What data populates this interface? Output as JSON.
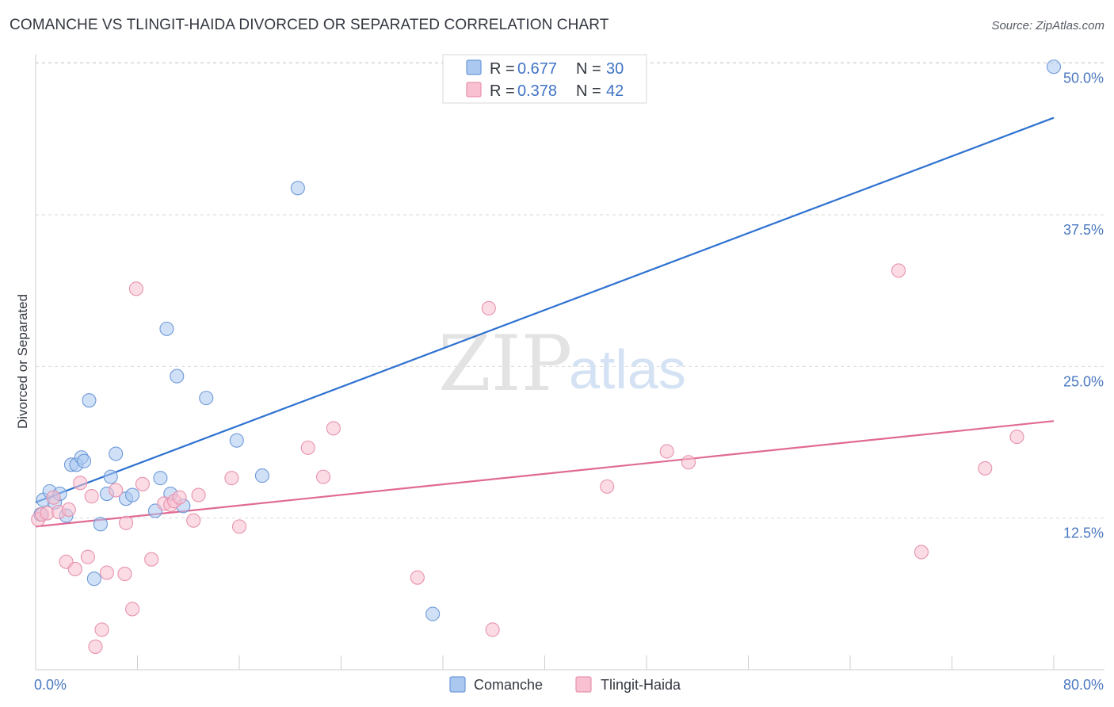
{
  "title": "COMANCHE VS TLINGIT-HAIDA DIVORCED OR SEPARATED CORRELATION CHART",
  "source": "Source: ZipAtlas.com",
  "watermark": {
    "zip": "ZIP",
    "atlas": "atlas"
  },
  "colors": {
    "comanche_fill": "#aac8f0",
    "comanche_stroke": "#6f9ad8",
    "comanche_line": "#2f72d0",
    "tlingit_fill": "#f8c0d0",
    "tlingit_stroke": "#e892ad",
    "tlingit_line": "#e06a95",
    "grid": "#d9d9d9",
    "tick_label": "#4a78c0"
  },
  "legend": {
    "rows": [
      {
        "r_label": "R = ",
        "r_value": "0.677",
        "n_label": "N = ",
        "n_value": "30"
      },
      {
        "r_label": "R = ",
        "r_value": "0.378",
        "n_label": "N = ",
        "n_value": "42"
      }
    ]
  },
  "chart_data": {
    "type": "scatter",
    "xlabel": "",
    "ylabel": "Divorced or Separated",
    "xlim": [
      0,
      80
    ],
    "ylim": [
      0,
      50.5
    ],
    "x_tick_labels": {
      "0": "0.0%",
      "80": "80.0%"
    },
    "y_ticks": [
      12.5,
      25.0,
      37.5,
      50.0
    ],
    "y_tick_labels": [
      "12.5%",
      "25.0%",
      "37.5%",
      "50.0%"
    ],
    "series": [
      {
        "name": "Comanche",
        "r": 0.677,
        "n": 30,
        "trend": {
          "x": [
            0,
            80
          ],
          "y": [
            13.8,
            45.5
          ]
        },
        "points": [
          {
            "x": 0.4,
            "y": 12.8
          },
          {
            "x": 0.6,
            "y": 14.0
          },
          {
            "x": 1.1,
            "y": 14.7
          },
          {
            "x": 1.5,
            "y": 13.8
          },
          {
            "x": 1.9,
            "y": 14.5
          },
          {
            "x": 2.4,
            "y": 12.7
          },
          {
            "x": 2.8,
            "y": 16.9
          },
          {
            "x": 3.2,
            "y": 16.9
          },
          {
            "x": 3.6,
            "y": 17.5
          },
          {
            "x": 3.8,
            "y": 17.2
          },
          {
            "x": 4.2,
            "y": 22.2
          },
          {
            "x": 4.6,
            "y": 7.5
          },
          {
            "x": 5.1,
            "y": 12.0
          },
          {
            "x": 5.6,
            "y": 14.5
          },
          {
            "x": 5.9,
            "y": 15.9
          },
          {
            "x": 6.3,
            "y": 17.8
          },
          {
            "x": 7.1,
            "y": 14.1
          },
          {
            "x": 7.6,
            "y": 14.4
          },
          {
            "x": 9.4,
            "y": 13.1
          },
          {
            "x": 9.8,
            "y": 15.8
          },
          {
            "x": 10.3,
            "y": 28.1
          },
          {
            "x": 10.6,
            "y": 14.5
          },
          {
            "x": 11.1,
            "y": 24.2
          },
          {
            "x": 11.6,
            "y": 13.5
          },
          {
            "x": 13.4,
            "y": 22.4
          },
          {
            "x": 15.8,
            "y": 18.9
          },
          {
            "x": 17.8,
            "y": 16.0
          },
          {
            "x": 20.6,
            "y": 39.7
          },
          {
            "x": 31.2,
            "y": 4.6
          },
          {
            "x": 80.0,
            "y": 49.7
          }
        ]
      },
      {
        "name": "Tlingit-Haida",
        "r": 0.378,
        "n": 42,
        "trend": {
          "x": [
            0,
            80
          ],
          "y": [
            11.8,
            20.5
          ]
        },
        "points": [
          {
            "x": 0.2,
            "y": 12.4
          },
          {
            "x": 0.5,
            "y": 12.8
          },
          {
            "x": 0.9,
            "y": 12.9
          },
          {
            "x": 1.4,
            "y": 14.2
          },
          {
            "x": 1.8,
            "y": 13.0
          },
          {
            "x": 2.4,
            "y": 8.9
          },
          {
            "x": 2.6,
            "y": 13.2
          },
          {
            "x": 3.1,
            "y": 8.3
          },
          {
            "x": 3.5,
            "y": 15.4
          },
          {
            "x": 4.1,
            "y": 9.3
          },
          {
            "x": 4.4,
            "y": 14.3
          },
          {
            "x": 4.7,
            "y": 1.9
          },
          {
            "x": 5.2,
            "y": 3.3
          },
          {
            "x": 5.6,
            "y": 8.0
          },
          {
            "x": 6.3,
            "y": 14.8
          },
          {
            "x": 7.0,
            "y": 7.9
          },
          {
            "x": 7.1,
            "y": 12.1
          },
          {
            "x": 7.6,
            "y": 5.0
          },
          {
            "x": 7.9,
            "y": 31.4
          },
          {
            "x": 8.4,
            "y": 15.3
          },
          {
            "x": 9.1,
            "y": 9.1
          },
          {
            "x": 10.1,
            "y": 13.7
          },
          {
            "x": 10.6,
            "y": 13.6
          },
          {
            "x": 10.9,
            "y": 13.9
          },
          {
            "x": 11.3,
            "y": 14.2
          },
          {
            "x": 12.4,
            "y": 12.3
          },
          {
            "x": 12.8,
            "y": 14.4
          },
          {
            "x": 15.4,
            "y": 15.8
          },
          {
            "x": 16.0,
            "y": 11.8
          },
          {
            "x": 21.4,
            "y": 18.3
          },
          {
            "x": 22.6,
            "y": 15.9
          },
          {
            "x": 23.4,
            "y": 19.9
          },
          {
            "x": 30.0,
            "y": 7.6
          },
          {
            "x": 35.6,
            "y": 29.8
          },
          {
            "x": 35.9,
            "y": 3.3
          },
          {
            "x": 44.9,
            "y": 15.1
          },
          {
            "x": 49.6,
            "y": 18.0
          },
          {
            "x": 51.3,
            "y": 17.1
          },
          {
            "x": 67.8,
            "y": 32.9
          },
          {
            "x": 69.6,
            "y": 9.7
          },
          {
            "x": 74.6,
            "y": 16.6
          },
          {
            "x": 77.1,
            "y": 19.2
          }
        ]
      }
    ]
  }
}
